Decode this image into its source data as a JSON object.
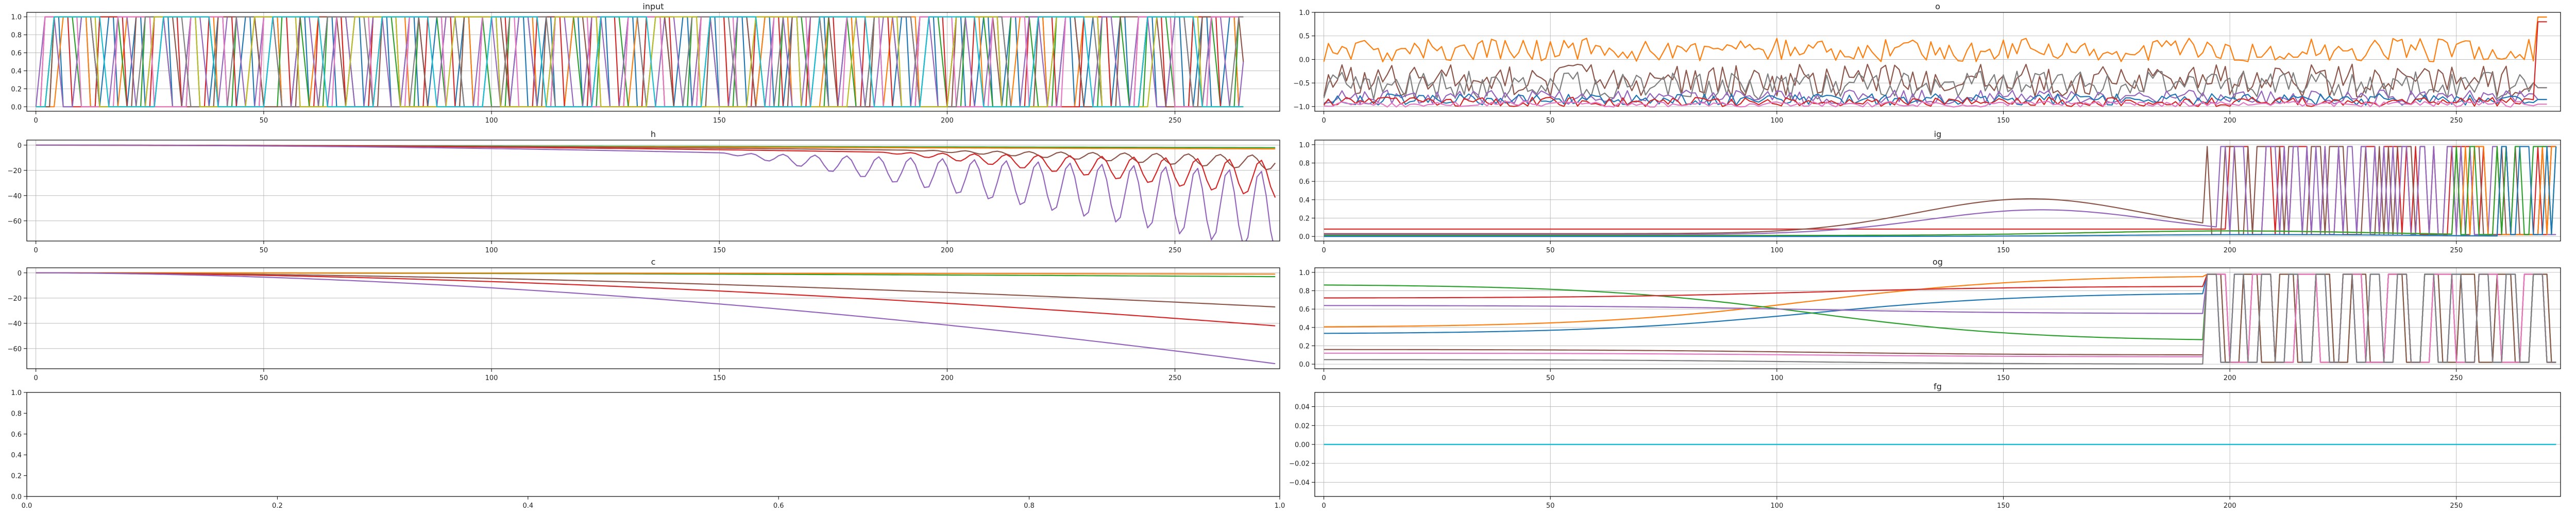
{
  "palette": [
    "#1f77b4",
    "#ff7f0e",
    "#2ca02c",
    "#d62728",
    "#9467bd",
    "#8c564b",
    "#e377c2",
    "#7f7f7f",
    "#bcbd22",
    "#17becf"
  ],
  "chart_data": [
    {
      "type": "line",
      "title": "input",
      "xlim": [
        -2,
        273
      ],
      "ylim": [
        -0.05,
        1.05
      ],
      "grid": true,
      "xticks": [
        0,
        50,
        100,
        150,
        200,
        250
      ],
      "yticks": [
        0.0,
        0.2,
        0.4,
        0.6,
        0.8,
        1.0
      ],
      "x_range": [
        0,
        265
      ],
      "series": [
        {
          "color": "#1f77b4",
          "pattern": "square",
          "period": 3,
          "phase": 0
        },
        {
          "color": "#ff7f0e",
          "pattern": "square",
          "period": 7,
          "phase": 2
        },
        {
          "color": "#2ca02c",
          "pattern": "square",
          "period": 5,
          "phase": 1
        },
        {
          "color": "#d62728",
          "pattern": "square",
          "period": 6,
          "phase": 4
        },
        {
          "color": "#9467bd",
          "pattern": "square",
          "period": 4,
          "phase": 3
        },
        {
          "color": "#8c564b",
          "pattern": "square",
          "period": 9,
          "phase": 5
        },
        {
          "color": "#e377c2",
          "pattern": "square",
          "period": 8,
          "phase": 6
        },
        {
          "color": "#7f7f7f",
          "pattern": "square",
          "period": 10,
          "phase": 7
        },
        {
          "color": "#bcbd22",
          "pattern": "square",
          "period": 11,
          "phase": 8
        },
        {
          "color": "#17becf",
          "pattern": "square",
          "period": 12,
          "phase": 9
        }
      ]
    },
    {
      "type": "line",
      "title": "o",
      "xlim": [
        -2,
        273
      ],
      "ylim": [
        -1.1,
        1.0
      ],
      "grid": true,
      "xticks": [
        0,
        50,
        100,
        150,
        200,
        250
      ],
      "yticks": [
        -1.0,
        -0.5,
        0.0,
        0.5,
        1.0
      ],
      "x_range": [
        0,
        270
      ],
      "series": [
        {
          "color": "#ff7f0e",
          "pattern": "noise",
          "base": 0.2,
          "amp": 0.25,
          "end": 0.9
        },
        {
          "color": "#8c564b",
          "pattern": "noise",
          "base": -0.45,
          "amp": 0.35,
          "end": -0.6
        },
        {
          "color": "#7f7f7f",
          "pattern": "noise",
          "base": -0.55,
          "amp": 0.3,
          "end": -0.6
        },
        {
          "color": "#9467bd",
          "pattern": "noise",
          "base": -0.8,
          "amp": 0.15,
          "end": -0.85
        },
        {
          "color": "#1f77b4",
          "pattern": "noise",
          "base": -0.85,
          "amp": 0.12,
          "end": -0.85
        },
        {
          "color": "#d62728",
          "pattern": "noise",
          "base": -0.9,
          "amp": 0.1,
          "end": 0.8
        },
        {
          "color": "#e377c2",
          "pattern": "noise",
          "base": -0.95,
          "amp": 0.06,
          "end": -0.95
        }
      ]
    },
    {
      "type": "line",
      "title": "h",
      "xlim": [
        -2,
        273
      ],
      "ylim": [
        -76,
        4
      ],
      "grid": true,
      "xticks": [
        0,
        50,
        100,
        150,
        200,
        250
      ],
      "yticks": [
        -60,
        -40,
        -20,
        0
      ],
      "x_range": [
        0,
        272
      ],
      "series": [
        {
          "color": "#2ca02c",
          "pattern": "flat",
          "value": 0,
          "drift": -2
        },
        {
          "color": "#ff7f0e",
          "pattern": "flat",
          "value": 0,
          "drift": -3
        },
        {
          "color": "#8c564b",
          "pattern": "decay",
          "drift": -8,
          "spike": -12,
          "start": 190
        },
        {
          "color": "#d62728",
          "pattern": "decay",
          "drift": -12,
          "spike": -30,
          "start": 185
        },
        {
          "color": "#9467bd",
          "pattern": "decay",
          "drift": -20,
          "spike": -65,
          "start": 150
        }
      ]
    },
    {
      "type": "line",
      "title": "ig",
      "xlim": [
        -2,
        273
      ],
      "ylim": [
        -0.05,
        1.05
      ],
      "grid": true,
      "xticks": [
        0,
        50,
        100,
        150,
        200,
        250
      ],
      "yticks": [
        0.0,
        0.2,
        0.4,
        0.6,
        0.8,
        1.0
      ],
      "x_range": [
        0,
        272
      ],
      "series": [
        {
          "color": "#d62728",
          "pattern": "gate",
          "low": 0.08,
          "hump": 0.0,
          "switch": 200
        },
        {
          "color": "#8c564b",
          "pattern": "gate",
          "low": 0.03,
          "hump": 0.38,
          "switch": 195
        },
        {
          "color": "#9467bd",
          "pattern": "gate",
          "low": 0.02,
          "hump": 0.27,
          "switch": 198
        },
        {
          "color": "#ff7f0e",
          "pattern": "gate",
          "low": 0.01,
          "hump": 0.05,
          "switch": 250
        },
        {
          "color": "#2ca02c",
          "pattern": "gate",
          "low": 0.01,
          "hump": 0.05,
          "switch": 250
        },
        {
          "color": "#1f77b4",
          "pattern": "gate",
          "low": 0.0,
          "hump": 0.02,
          "switch": 260
        }
      ]
    },
    {
      "type": "line",
      "title": "c",
      "xlim": [
        -2,
        273
      ],
      "ylim": [
        -76,
        4
      ],
      "grid": true,
      "xticks": [
        0,
        50,
        100,
        150,
        200,
        250
      ],
      "yticks": [
        -60,
        -40,
        -20,
        0
      ],
      "x_range": [
        0,
        272
      ],
      "series": [
        {
          "color": "#2ca02c",
          "pattern": "smooth",
          "end": -3
        },
        {
          "color": "#ff7f0e",
          "pattern": "smooth",
          "end": -1
        },
        {
          "color": "#8c564b",
          "pattern": "smooth",
          "end": -27
        },
        {
          "color": "#d62728",
          "pattern": "smooth",
          "end": -42
        },
        {
          "color": "#9467bd",
          "pattern": "smooth",
          "end": -72
        }
      ]
    },
    {
      "type": "line",
      "title": "og",
      "xlim": [
        -2,
        273
      ],
      "ylim": [
        -0.05,
        1.05
      ],
      "grid": true,
      "xticks": [
        0,
        50,
        100,
        150,
        200,
        250
      ],
      "yticks": [
        0.0,
        0.2,
        0.4,
        0.6,
        0.8,
        1.0
      ],
      "x_range": [
        0,
        272
      ],
      "series": [
        {
          "color": "#ff7f0e",
          "pattern": "ogate",
          "start": 0.4,
          "mid": 0.97,
          "switch": 195
        },
        {
          "color": "#1f77b4",
          "pattern": "ogate",
          "start": 0.33,
          "mid": 0.78,
          "switch": 195
        },
        {
          "color": "#2ca02c",
          "pattern": "ogate",
          "start": 0.87,
          "mid": 0.25,
          "switch": 195
        },
        {
          "color": "#d62728",
          "pattern": "ogate",
          "start": 0.72,
          "mid": 0.85,
          "switch": 195
        },
        {
          "color": "#9467bd",
          "pattern": "ogate",
          "start": 0.64,
          "mid": 0.55,
          "switch": 195
        },
        {
          "color": "#8c564b",
          "pattern": "ogate",
          "start": 0.16,
          "mid": 0.1,
          "switch": 195
        },
        {
          "color": "#e377c2",
          "pattern": "ogate",
          "start": 0.12,
          "mid": 0.08,
          "switch": 195
        },
        {
          "color": "#7f7f7f",
          "pattern": "ogate",
          "start": 0.05,
          "mid": 0.0,
          "switch": 195
        }
      ]
    },
    {
      "type": "line",
      "title": "",
      "xlim": [
        0.0,
        1.0
      ],
      "ylim": [
        0.0,
        1.0
      ],
      "grid": false,
      "xticks": [
        0.0,
        0.2,
        0.4,
        0.6,
        0.8,
        1.0
      ],
      "yticks": [
        0.0,
        0.2,
        0.4,
        0.6,
        0.8,
        1.0
      ],
      "series": []
    },
    {
      "type": "line",
      "title": "fg",
      "xlim": [
        -2,
        273
      ],
      "ylim": [
        -0.055,
        0.055
      ],
      "grid": true,
      "xticks": [
        0,
        50,
        100,
        150,
        200,
        250
      ],
      "yticks": [
        -0.04,
        -0.02,
        0.0,
        0.02,
        0.04
      ],
      "x_range": [
        0,
        272
      ],
      "series": [
        {
          "color": "#1f77b4",
          "pattern": "flat",
          "value": 0,
          "drift": 0
        },
        {
          "color": "#17becf",
          "pattern": "flat",
          "value": 0,
          "drift": 0
        }
      ]
    }
  ]
}
